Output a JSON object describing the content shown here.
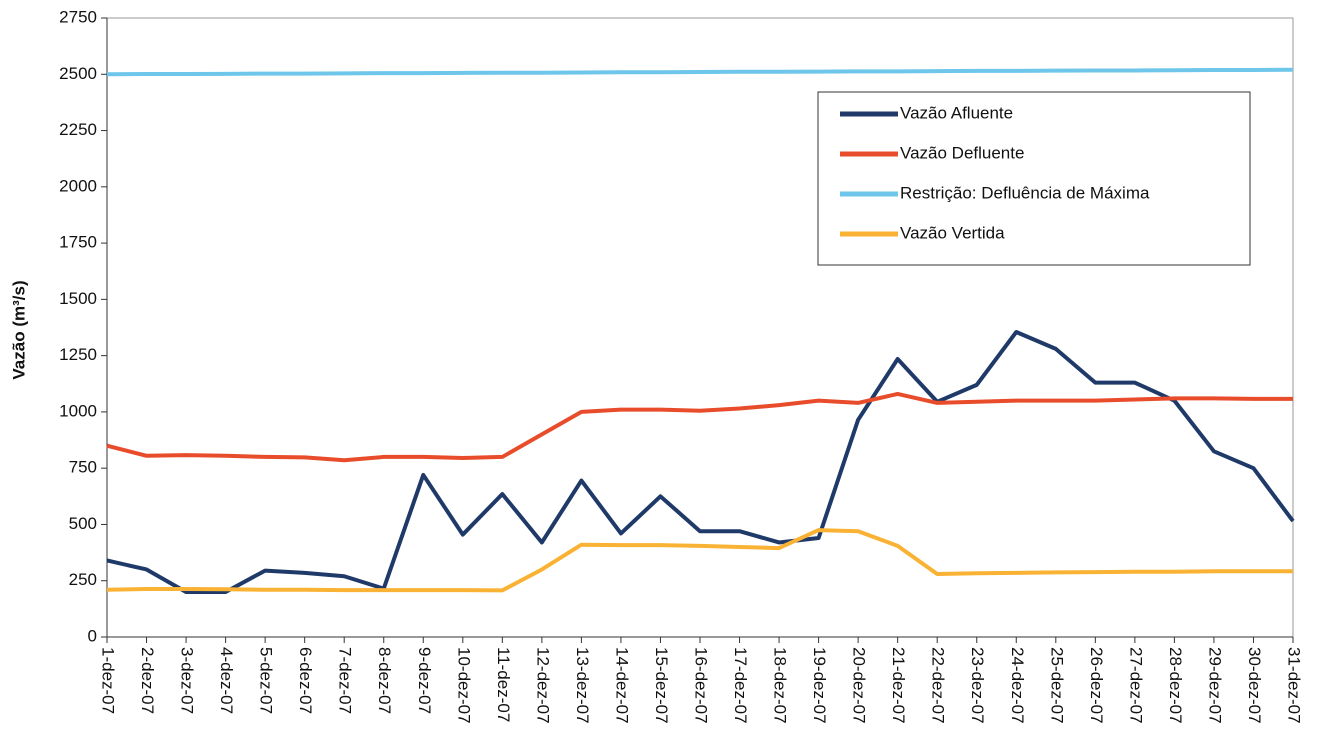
{
  "chart_data": {
    "type": "line",
    "y_label": "Vazão (m³/s)",
    "categories": [
      "1-dez-07",
      "2-dez-07",
      "3-dez-07",
      "4-dez-07",
      "5-dez-07",
      "6-dez-07",
      "7-dez-07",
      "8-dez-07",
      "9-dez-07",
      "10-dez-07",
      "11-dez-07",
      "12-dez-07",
      "13-dez-07",
      "14-dez-07",
      "15-dez-07",
      "16-dez-07",
      "17-dez-07",
      "18-dez-07",
      "19-dez-07",
      "20-dez-07",
      "21-dez-07",
      "22-dez-07",
      "23-dez-07",
      "24-dez-07",
      "25-dez-07",
      "26-dez-07",
      "27-dez-07",
      "28-dez-07",
      "29-dez-07",
      "30-dez-07",
      "31-dez-07"
    ],
    "series": [
      {
        "name": "Vazão Afluente",
        "color": "#1f3a68",
        "values": [
          340,
          300,
          200,
          200,
          295,
          285,
          270,
          215,
          720,
          455,
          635,
          420,
          695,
          460,
          625,
          470,
          470,
          420,
          440,
          965,
          1235,
          1045,
          1120,
          1355,
          1280,
          1130,
          1130,
          1050,
          825,
          750,
          515
        ]
      },
      {
        "name": "Vazão Defluente",
        "color": "#e84c2b",
        "values": [
          850,
          805,
          808,
          805,
          800,
          798,
          785,
          800,
          800,
          795,
          800,
          900,
          1000,
          1010,
          1010,
          1005,
          1015,
          1030,
          1050,
          1040,
          1080,
          1040,
          1045,
          1050,
          1050,
          1050,
          1055,
          1060,
          1060,
          1058,
          1058
        ]
      },
      {
        "name": "Restrição: Defluência de Máxima",
        "color": "#6ec6ea",
        "values": [
          2500,
          2501,
          2501,
          2502,
          2503,
          2503,
          2504,
          2505,
          2505,
          2506,
          2507,
          2507,
          2508,
          2509,
          2509,
          2510,
          2511,
          2511,
          2512,
          2513,
          2513,
          2514,
          2515,
          2515,
          2516,
          2517,
          2517,
          2518,
          2519,
          2519,
          2520
        ]
      },
      {
        "name": "Vazão Vertida",
        "color": "#f9b233",
        "values": [
          210,
          213,
          213,
          212,
          210,
          210,
          208,
          208,
          208,
          208,
          207,
          300,
          410,
          408,
          408,
          405,
          400,
          395,
          475,
          470,
          405,
          280,
          283,
          285,
          287,
          288,
          290,
          290,
          292,
          292,
          292
        ]
      }
    ],
    "ylim": [
      0,
      2750
    ],
    "yticks": [
      0,
      250,
      500,
      750,
      1000,
      1250,
      1500,
      1750,
      2000,
      2250,
      2500,
      2750
    ],
    "grid": false,
    "legend": "upper right"
  }
}
